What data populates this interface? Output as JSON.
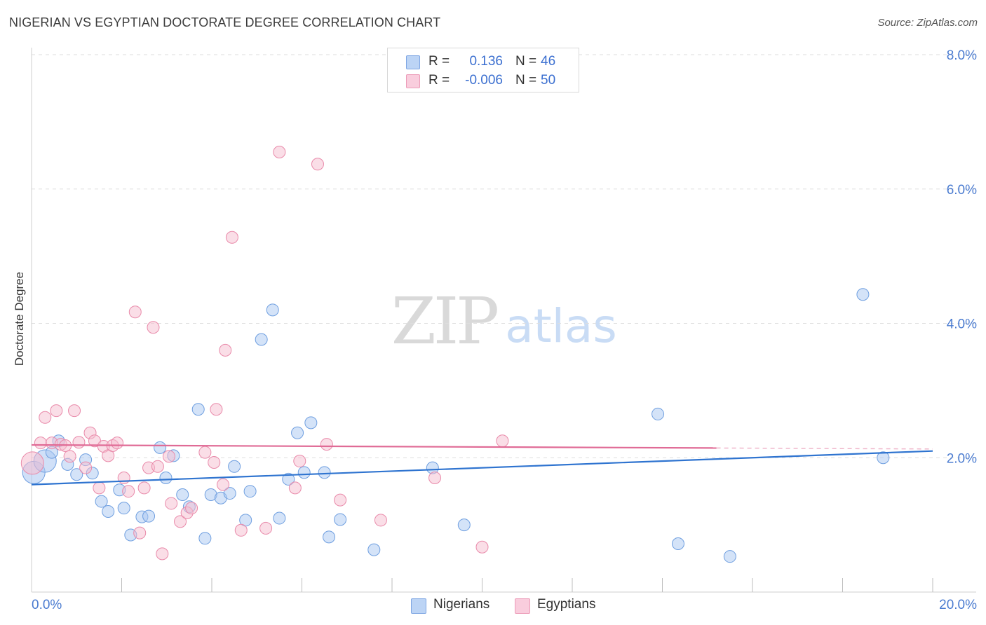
{
  "title": "NIGERIAN VS EGYPTIAN DOCTORATE DEGREE CORRELATION CHART",
  "source": "Source: ZipAtlas.com",
  "watermark": {
    "zip": "ZIP",
    "atlas": "atlas"
  },
  "colors": {
    "blue_fill": "#a9c7f2",
    "blue_stroke": "#6f9fe0",
    "blue_line": "#2f74d0",
    "pink_fill": "#f6bdd0",
    "pink_stroke": "#e98aaa",
    "pink_line": "#e06b96",
    "axis_text": "#4a7bd0",
    "grid": "#dedede"
  },
  "legend": {
    "rows": [
      {
        "series": "Nigerians",
        "r_label": "R =",
        "r_value": "0.136",
        "n_label": "N =",
        "n_value": "46"
      },
      {
        "series": "Egyptians",
        "r_label": "R =",
        "r_value": "-0.006",
        "n_label": "N =",
        "n_value": "50"
      }
    ]
  },
  "chart_data": {
    "type": "scatter",
    "title": "NIGERIAN VS EGYPTIAN DOCTORATE DEGREE CORRELATION CHART",
    "xlabel": "",
    "ylabel": "Doctorate Degree",
    "xlim": [
      0,
      20
    ],
    "ylim": [
      0,
      8
    ],
    "x_tick_labels": [
      "0.0%",
      "20.0%"
    ],
    "y_ticks": [
      2,
      4,
      6,
      8
    ],
    "y_tick_labels": [
      "2.0%",
      "4.0%",
      "6.0%",
      "8.0%"
    ],
    "grid": true,
    "legend_position": "top-center",
    "series": [
      {
        "name": "Nigerians",
        "color": "blue",
        "trend": {
          "x": [
            0,
            20
          ],
          "y": [
            1.6,
            2.1
          ],
          "solid_until": 20
        },
        "points": [
          {
            "x": 0.05,
            "y": 1.78,
            "big": true
          },
          {
            "x": 0.3,
            "y": 1.95,
            "big": true
          },
          {
            "x": 0.45,
            "y": 2.08
          },
          {
            "x": 0.6,
            "y": 2.25
          },
          {
            "x": 0.8,
            "y": 1.9
          },
          {
            "x": 1.0,
            "y": 1.75
          },
          {
            "x": 1.2,
            "y": 1.97
          },
          {
            "x": 1.35,
            "y": 1.77
          },
          {
            "x": 1.55,
            "y": 1.35
          },
          {
            "x": 1.7,
            "y": 1.2
          },
          {
            "x": 1.95,
            "y": 1.52
          },
          {
            "x": 2.05,
            "y": 1.25
          },
          {
            "x": 2.2,
            "y": 0.85
          },
          {
            "x": 2.45,
            "y": 1.12
          },
          {
            "x": 2.6,
            "y": 1.13
          },
          {
            "x": 2.85,
            "y": 2.15
          },
          {
            "x": 2.98,
            "y": 1.7
          },
          {
            "x": 3.15,
            "y": 2.03
          },
          {
            "x": 3.35,
            "y": 1.45
          },
          {
            "x": 3.5,
            "y": 1.27
          },
          {
            "x": 3.7,
            "y": 2.72
          },
          {
            "x": 3.85,
            "y": 0.8
          },
          {
            "x": 3.98,
            "y": 1.45
          },
          {
            "x": 4.2,
            "y": 1.4
          },
          {
            "x": 4.4,
            "y": 1.47
          },
          {
            "x": 4.5,
            "y": 1.87
          },
          {
            "x": 4.75,
            "y": 1.07
          },
          {
            "x": 4.85,
            "y": 1.5
          },
          {
            "x": 5.1,
            "y": 3.76
          },
          {
            "x": 5.35,
            "y": 4.2
          },
          {
            "x": 5.5,
            "y": 1.1
          },
          {
            "x": 5.7,
            "y": 1.68
          },
          {
            "x": 5.9,
            "y": 2.37
          },
          {
            "x": 6.05,
            "y": 1.78
          },
          {
            "x": 6.2,
            "y": 2.52
          },
          {
            "x": 6.5,
            "y": 1.78
          },
          {
            "x": 6.6,
            "y": 0.82
          },
          {
            "x": 6.85,
            "y": 1.08
          },
          {
            "x": 7.6,
            "y": 0.63
          },
          {
            "x": 8.9,
            "y": 1.85
          },
          {
            "x": 9.6,
            "y": 1.0
          },
          {
            "x": 13.9,
            "y": 2.65
          },
          {
            "x": 14.35,
            "y": 0.72
          },
          {
            "x": 15.5,
            "y": 0.53
          },
          {
            "x": 18.45,
            "y": 4.43
          },
          {
            "x": 18.9,
            "y": 2.0
          }
        ]
      },
      {
        "name": "Egyptians",
        "color": "pink",
        "trend": {
          "x": [
            0,
            20
          ],
          "y": [
            2.19,
            2.13
          ],
          "solid_until": 15.2
        },
        "points": [
          {
            "x": 0.02,
            "y": 1.92,
            "big": true
          },
          {
            "x": 0.2,
            "y": 2.22
          },
          {
            "x": 0.3,
            "y": 2.6
          },
          {
            "x": 0.45,
            "y": 2.22
          },
          {
            "x": 0.55,
            "y": 2.7
          },
          {
            "x": 0.65,
            "y": 2.2
          },
          {
            "x": 0.75,
            "y": 2.18
          },
          {
            "x": 0.85,
            "y": 2.02
          },
          {
            "x": 0.95,
            "y": 2.7
          },
          {
            "x": 1.05,
            "y": 2.23
          },
          {
            "x": 1.2,
            "y": 1.85
          },
          {
            "x": 1.3,
            "y": 2.37
          },
          {
            "x": 1.4,
            "y": 2.25
          },
          {
            "x": 1.5,
            "y": 1.55
          },
          {
            "x": 1.6,
            "y": 2.17
          },
          {
            "x": 1.7,
            "y": 2.03
          },
          {
            "x": 1.8,
            "y": 2.18
          },
          {
            "x": 1.9,
            "y": 2.22
          },
          {
            "x": 2.05,
            "y": 1.7
          },
          {
            "x": 2.15,
            "y": 1.5
          },
          {
            "x": 2.3,
            "y": 4.17
          },
          {
            "x": 2.4,
            "y": 0.88
          },
          {
            "x": 2.5,
            "y": 1.55
          },
          {
            "x": 2.6,
            "y": 1.85
          },
          {
            "x": 2.7,
            "y": 3.94
          },
          {
            "x": 2.8,
            "y": 1.87
          },
          {
            "x": 2.9,
            "y": 0.57
          },
          {
            "x": 3.05,
            "y": 2.02
          },
          {
            "x": 3.1,
            "y": 1.32
          },
          {
            "x": 3.3,
            "y": 1.05
          },
          {
            "x": 3.45,
            "y": 1.18
          },
          {
            "x": 3.55,
            "y": 1.25
          },
          {
            "x": 3.85,
            "y": 2.08
          },
          {
            "x": 4.05,
            "y": 1.93
          },
          {
            "x": 4.1,
            "y": 2.72
          },
          {
            "x": 4.25,
            "y": 1.6
          },
          {
            "x": 4.3,
            "y": 3.6
          },
          {
            "x": 4.45,
            "y": 5.28
          },
          {
            "x": 4.65,
            "y": 0.92
          },
          {
            "x": 5.2,
            "y": 0.95
          },
          {
            "x": 5.5,
            "y": 6.55
          },
          {
            "x": 5.85,
            "y": 1.55
          },
          {
            "x": 5.95,
            "y": 1.95
          },
          {
            "x": 6.35,
            "y": 6.37
          },
          {
            "x": 6.55,
            "y": 2.2
          },
          {
            "x": 6.85,
            "y": 1.37
          },
          {
            "x": 7.75,
            "y": 1.07
          },
          {
            "x": 8.95,
            "y": 1.7
          },
          {
            "x": 10.0,
            "y": 0.67
          },
          {
            "x": 10.45,
            "y": 2.25
          }
        ]
      }
    ]
  }
}
